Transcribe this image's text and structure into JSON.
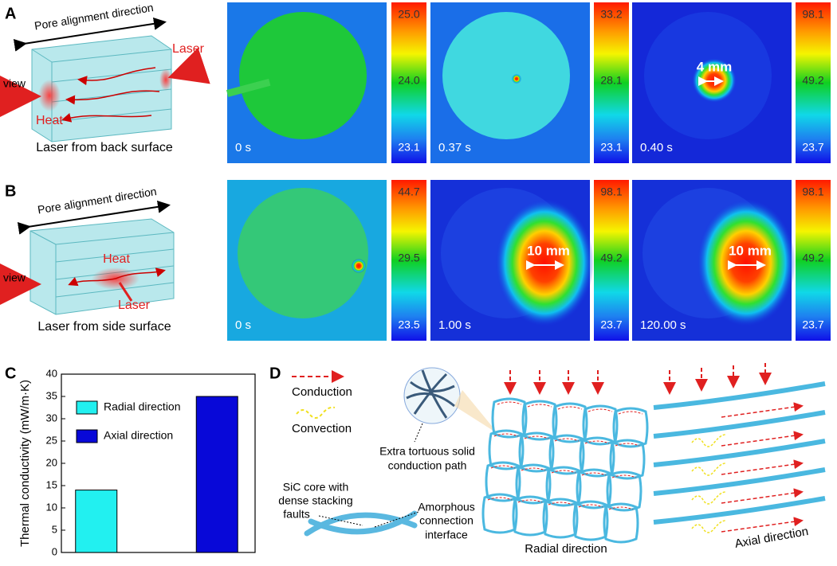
{
  "panels": {
    "A": {
      "label": "A",
      "diagram": {
        "direction": "Pore alignment direction",
        "laser": "Laser",
        "view": "view",
        "heat": "Heat",
        "caption": "Laser from back surface"
      },
      "images": [
        {
          "time": "0 s",
          "scale": [
            "25.0",
            "24.0",
            "23.1"
          ]
        },
        {
          "time": "0.37 s",
          "scale": [
            "33.2",
            "28.1",
            "23.1"
          ]
        },
        {
          "time": "0.40 s",
          "scale": [
            "98.1",
            "49.2",
            "23.7"
          ],
          "annotation": "4 mm"
        }
      ]
    },
    "B": {
      "label": "B",
      "diagram": {
        "direction": "Pore alignment direction",
        "laser": "Laser",
        "view": "view",
        "heat": "Heat",
        "caption": "Laser from side surface"
      },
      "images": [
        {
          "time": "0 s",
          "scale": [
            "44.7",
            "29.5",
            "23.5"
          ]
        },
        {
          "time": "1.00 s",
          "scale": [
            "98.1",
            "49.2",
            "23.7"
          ],
          "annotation": "10 mm"
        },
        {
          "time": "120.00 s",
          "scale": [
            "98.1",
            "49.2",
            "23.7"
          ],
          "annotation": "10 mm"
        }
      ]
    },
    "C": {
      "label": "C"
    },
    "D": {
      "label": "D",
      "conduction": "Conduction",
      "convection": "Convection",
      "path_note": [
        "Extra tortuous solid",
        "conduction path"
      ],
      "core_note": [
        "SiC core with",
        "dense stacking",
        "faults"
      ],
      "interface_note": [
        "Amorphous",
        "connection",
        "interface"
      ],
      "radial": "Radial direction",
      "axial": "Axial direction"
    }
  },
  "chart_data": {
    "type": "bar",
    "y_label": "Thermal conductivity (mW/m·K)",
    "categories": [
      null,
      null
    ],
    "series": [
      {
        "name": "Radial direction",
        "color": "#22f0f0",
        "values": [
          14,
          null
        ]
      },
      {
        "name": "Axial direction",
        "color": "#0808d8",
        "values": [
          null,
          35
        ]
      }
    ],
    "ylim": [
      0,
      40
    ],
    "yticks": [
      0,
      5,
      10,
      15,
      20,
      25,
      30,
      35,
      40
    ],
    "legend": "center left"
  }
}
